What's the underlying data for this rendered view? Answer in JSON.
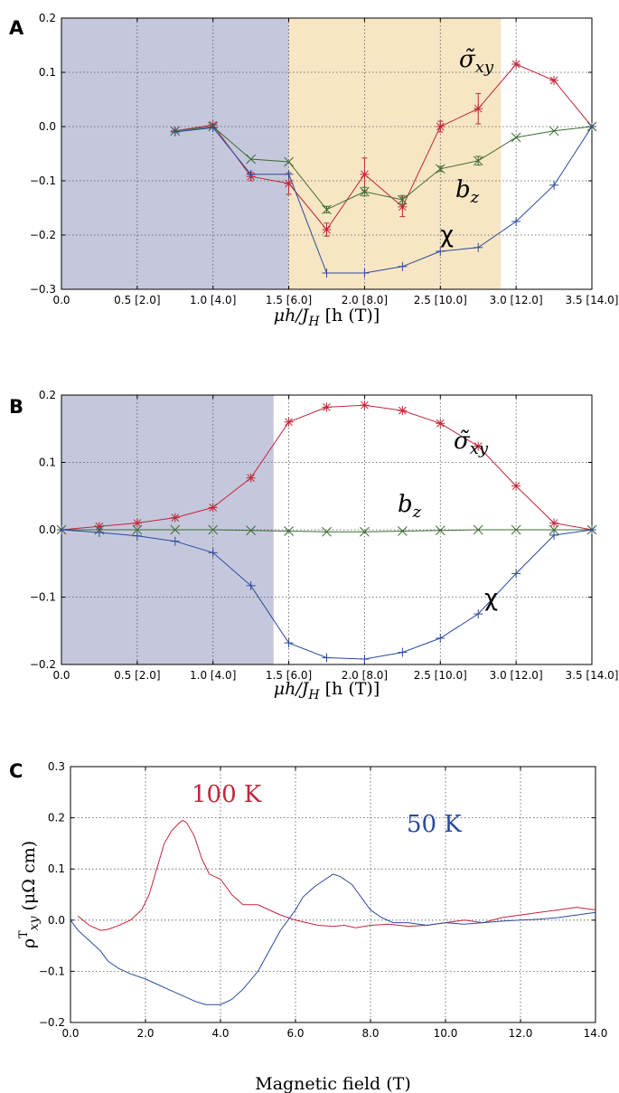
{
  "chart_data": [
    {
      "panel": "A",
      "type": "line",
      "xlabel_main": "μh/J",
      "xlabel_sub": "H",
      "xlabel_rest": " [h (T)]",
      "xlim": [
        0.0,
        3.5
      ],
      "ylim": [
        -0.3,
        0.2
      ],
      "xticks": [
        0.0,
        0.5,
        1.0,
        1.5,
        2.0,
        2.5,
        3.0,
        3.5
      ],
      "xtick_labels": [
        "0.0",
        "0.5 [2.0]",
        "1.0 [4.0]",
        "1.5 [6.0]",
        "2.0 [8.0]",
        "2.5 [10.0]",
        "3.0 [12.0]",
        "3.5 [14.0]"
      ],
      "yticks": [
        -0.3,
        -0.2,
        -0.1,
        0.0,
        0.1,
        0.2
      ],
      "ytick_labels": [
        "−0.3",
        "−0.2",
        "−0.1",
        "0.0",
        "0.1",
        "0.2"
      ],
      "grid": true,
      "shaded_regions": [
        {
          "x0": 0.0,
          "x1": 1.5,
          "color": "#c5c8dc"
        },
        {
          "x0": 1.5,
          "x1": 2.9,
          "color": "#f7e6c4"
        }
      ],
      "series": [
        {
          "name": "σ̃",
          "sub": "xy",
          "color": "#c1273b",
          "marker": "star",
          "x": [
            0.75,
            1.0,
            1.25,
            1.5,
            1.75,
            2.0,
            2.25,
            2.5,
            2.75,
            3.0,
            3.25,
            3.5
          ],
          "y": [
            -0.008,
            0.003,
            -0.092,
            -0.105,
            -0.19,
            -0.088,
            -0.148,
            0.0,
            0.033,
            0.115,
            0.085,
            0.0
          ],
          "err": [
            0,
            0,
            0.008,
            0.02,
            0.012,
            0.03,
            0.018,
            0.01,
            0.028,
            0,
            0,
            0
          ]
        },
        {
          "name": "b",
          "sub": "z",
          "color": "#3c6b33",
          "marker": "x",
          "x": [
            0.75,
            1.0,
            1.25,
            1.5,
            1.75,
            2.0,
            2.25,
            2.5,
            2.75,
            3.0,
            3.25,
            3.5
          ],
          "y": [
            -0.008,
            0.0,
            -0.06,
            -0.065,
            -0.153,
            -0.12,
            -0.135,
            -0.078,
            -0.063,
            -0.02,
            -0.008,
            0.0
          ],
          "err": [
            0,
            0,
            0,
            0,
            0.006,
            0.008,
            0.008,
            0.005,
            0.008,
            0,
            0,
            0
          ]
        },
        {
          "name": "χ",
          "sub": "",
          "color": "#2a4a9c",
          "marker": "plus",
          "x": [
            0.75,
            1.0,
            1.25,
            1.5,
            1.75,
            2.0,
            2.25,
            2.5,
            2.75,
            3.0,
            3.25,
            3.5
          ],
          "y": [
            -0.01,
            -0.002,
            -0.088,
            -0.088,
            -0.27,
            -0.27,
            -0.258,
            -0.23,
            -0.223,
            -0.175,
            -0.108,
            0.0
          ],
          "err": [
            0,
            0,
            0,
            0,
            0,
            0,
            0,
            0,
            0,
            0,
            0,
            0
          ]
        }
      ]
    },
    {
      "panel": "B",
      "type": "line",
      "xlabel_main": "μh/J",
      "xlabel_sub": "H",
      "xlabel_rest": " [h (T)]",
      "xlim": [
        0.0,
        3.5
      ],
      "ylim": [
        -0.2,
        0.2
      ],
      "xticks": [
        0.0,
        0.5,
        1.0,
        1.5,
        2.0,
        2.5,
        3.0,
        3.5
      ],
      "xtick_labels": [
        "0.0",
        "0.5 [2.0]",
        "1.0 [4.0]",
        "1.5 [6.0]",
        "2.0 [8.0]",
        "2.5 [10.0]",
        "3.0 [12.0]",
        "3.5 [14.0]"
      ],
      "yticks": [
        -0.2,
        -0.1,
        0.0,
        0.1,
        0.2
      ],
      "ytick_labels": [
        "−0.2",
        "−0.1",
        "0.0",
        "0.1",
        "0.2"
      ],
      "grid": true,
      "shaded_regions": [
        {
          "x0": 0.0,
          "x1": 1.4,
          "color": "#c5c8dc"
        }
      ],
      "series": [
        {
          "name": "σ̃",
          "sub": "xy",
          "color": "#c1273b",
          "marker": "star",
          "x": [
            0.0,
            0.25,
            0.5,
            0.75,
            1.0,
            1.25,
            1.5,
            1.75,
            2.0,
            2.25,
            2.5,
            2.75,
            3.0,
            3.25,
            3.5
          ],
          "y": [
            0.0,
            0.005,
            0.01,
            0.018,
            0.033,
            0.077,
            0.16,
            0.182,
            0.185,
            0.177,
            0.158,
            0.124,
            0.065,
            0.01,
            0.0
          ]
        },
        {
          "name": "b",
          "sub": "z",
          "color": "#3c6b33",
          "marker": "x",
          "x": [
            0.0,
            0.25,
            0.5,
            0.75,
            1.0,
            1.25,
            1.5,
            1.75,
            2.0,
            2.25,
            2.5,
            2.75,
            3.0,
            3.25,
            3.5
          ],
          "y": [
            0.0,
            0.0,
            0.0,
            0.0,
            0.0,
            -0.001,
            -0.002,
            -0.003,
            -0.003,
            -0.002,
            -0.001,
            0.0,
            0.0,
            0.0,
            0.0
          ]
        },
        {
          "name": "χ",
          "sub": "",
          "color": "#2a4a9c",
          "marker": "plus",
          "x": [
            0.0,
            0.25,
            0.5,
            0.75,
            1.0,
            1.25,
            1.5,
            1.75,
            2.0,
            2.25,
            2.5,
            2.75,
            3.0,
            3.25,
            3.5
          ],
          "y": [
            0.0,
            -0.004,
            -0.009,
            -0.017,
            -0.034,
            -0.083,
            -0.168,
            -0.19,
            -0.192,
            -0.182,
            -0.161,
            -0.125,
            -0.065,
            -0.008,
            0.0
          ]
        }
      ]
    },
    {
      "panel": "C",
      "type": "line",
      "xlabel": "Magnetic field (T)",
      "ylabel_main": "ρ",
      "ylabel_sup": "T",
      "ylabel_sub": "xy",
      "ylabel_rest": " (μΩ cm)",
      "xlim": [
        0.0,
        14.0
      ],
      "ylim": [
        -0.2,
        0.3
      ],
      "xticks": [
        0,
        2,
        4,
        6,
        8,
        10,
        12,
        14
      ],
      "xtick_labels": [
        "0.0",
        "2.0",
        "4.0",
        "6.0",
        "8.0",
        "10.0",
        "12.0",
        "14.0"
      ],
      "yticks": [
        -0.2,
        -0.1,
        0.0,
        0.1,
        0.2,
        0.3
      ],
      "ytick_labels": [
        "−0.2",
        "−0.1",
        "0.0",
        "0.1",
        "0.2",
        "0.3"
      ],
      "grid": true,
      "series": [
        {
          "name": "100 K",
          "color": "#c1273b",
          "x": [
            0.2,
            0.5,
            0.8,
            1.0,
            1.3,
            1.6,
            1.9,
            2.1,
            2.3,
            2.5,
            2.7,
            2.9,
            3.0,
            3.1,
            3.3,
            3.5,
            3.7,
            4.0,
            4.3,
            4.6,
            5.0,
            5.3,
            5.6,
            6.0,
            6.3,
            6.6,
            7.0,
            7.3,
            7.6,
            8.0,
            8.5,
            9.0,
            9.5,
            10.0,
            10.5,
            11.0,
            11.5,
            12.0,
            12.5,
            13.0,
            13.5,
            14.0
          ],
          "y": [
            0.008,
            -0.01,
            -0.02,
            -0.018,
            -0.01,
            0.0,
            0.02,
            0.05,
            0.1,
            0.15,
            0.175,
            0.19,
            0.195,
            0.19,
            0.165,
            0.12,
            0.09,
            0.08,
            0.05,
            0.03,
            0.03,
            0.02,
            0.01,
            0.0,
            -0.005,
            -0.01,
            -0.012,
            -0.01,
            -0.015,
            -0.01,
            -0.008,
            -0.012,
            -0.01,
            -0.005,
            0.0,
            -0.005,
            0.005,
            0.01,
            0.015,
            0.02,
            0.025,
            0.02
          ]
        },
        {
          "name": "50 K",
          "color": "#2a4a9c",
          "x": [
            0.0,
            0.2,
            0.5,
            0.8,
            1.0,
            1.3,
            1.6,
            2.0,
            2.3,
            2.6,
            3.0,
            3.3,
            3.6,
            4.0,
            4.3,
            4.6,
            5.0,
            5.3,
            5.6,
            5.8,
            6.0,
            6.2,
            6.5,
            6.8,
            7.0,
            7.2,
            7.5,
            7.8,
            8.0,
            8.3,
            8.6,
            9.0,
            9.5,
            10.0,
            10.5,
            11.0,
            11.5,
            12.0,
            12.5,
            13.0,
            13.5,
            14.0
          ],
          "y": [
            0.0,
            -0.02,
            -0.04,
            -0.06,
            -0.08,
            -0.095,
            -0.105,
            -0.115,
            -0.125,
            -0.135,
            -0.148,
            -0.158,
            -0.165,
            -0.165,
            -0.155,
            -0.135,
            -0.1,
            -0.06,
            -0.02,
            0.0,
            0.02,
            0.045,
            0.065,
            0.08,
            0.09,
            0.085,
            0.07,
            0.04,
            0.02,
            0.005,
            -0.005,
            -0.005,
            -0.01,
            -0.005,
            -0.008,
            -0.005,
            -0.002,
            0.0,
            0.002,
            0.005,
            0.01,
            0.015
          ]
        }
      ]
    }
  ],
  "panels": {
    "A": {
      "letter": "A"
    },
    "B": {
      "letter": "B"
    },
    "C": {
      "letter": "C"
    }
  }
}
